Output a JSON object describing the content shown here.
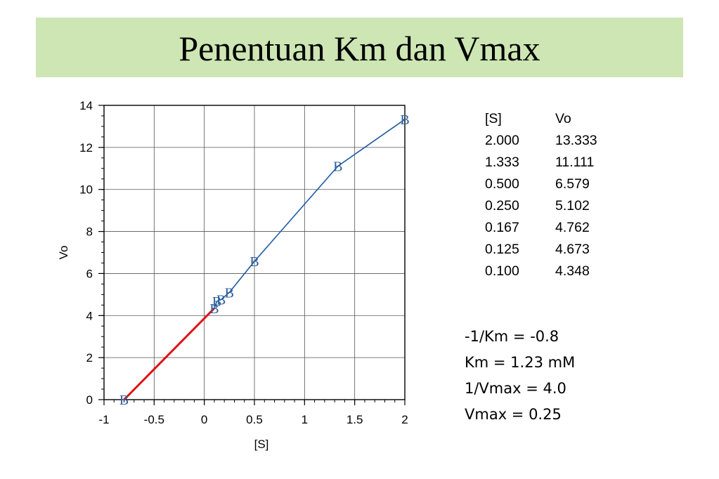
{
  "slide": {
    "title": "Penentuan Km dan Vmax"
  },
  "chart_data": {
    "type": "line",
    "xlabel": "[S]",
    "ylabel": "Vo",
    "xlim": [
      -1,
      2
    ],
    "ylim": [
      0,
      14
    ],
    "x_ticks": [
      "-1",
      "-0.5",
      "0",
      "0.5",
      "1",
      "1.5",
      "2"
    ],
    "y_ticks": [
      "0",
      "2",
      "4",
      "6",
      "8",
      "10",
      "12",
      "14"
    ],
    "grid": true,
    "marker_label": "B",
    "series": [
      {
        "color": "#1f5aa6",
        "x": [
          0.1,
          0.125,
          0.167,
          0.25,
          0.5,
          1.333,
          2.0
        ],
        "y": [
          4.348,
          4.673,
          4.762,
          5.102,
          6.579,
          11.111,
          13.333
        ]
      },
      {
        "color": "#e01010",
        "x": [
          -0.8,
          0.1
        ],
        "y": [
          0,
          4.348
        ]
      }
    ]
  },
  "table": {
    "headers": [
      "[S]",
      "Vo"
    ],
    "rows": [
      [
        "2.000",
        "13.333"
      ],
      [
        "1.333",
        "11.111"
      ],
      [
        "0.500",
        "6.579"
      ],
      [
        "0.250",
        "5.102"
      ],
      [
        "0.167",
        "4.762"
      ],
      [
        "0.125",
        "4.673"
      ],
      [
        "0.100",
        "4.348"
      ]
    ]
  },
  "calculations": [
    "-1/Km = -0.8",
    "Km = 1.23 mM",
    "1/Vmax = 4.0",
    "Vmax = 0.25"
  ]
}
